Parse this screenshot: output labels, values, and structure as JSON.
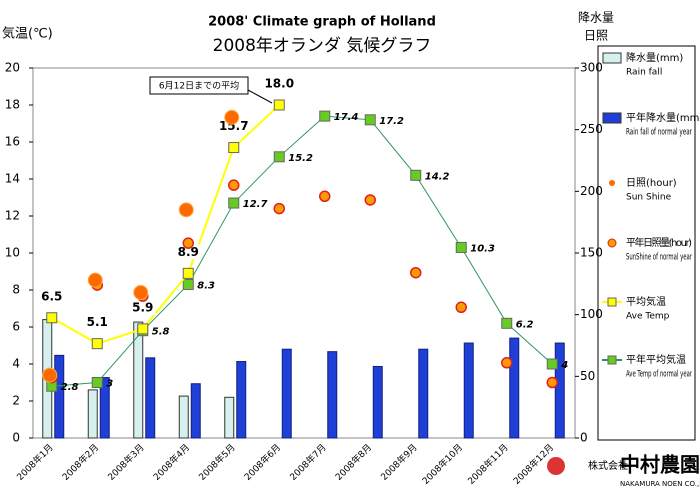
{
  "chart_data": {
    "type": "combo",
    "title": "2008' Climate graph of Holland",
    "subtitle": "2008年オランダ 気候グラフ",
    "y_label": "気温(℃)",
    "y2_label": [
      "降水量",
      "日照"
    ],
    "annotation": "6月12日までの平均",
    "logo": [
      "株式会社",
      "中村農園",
      "NAKAMURA NOEN CO.,LTD."
    ],
    "categories": [
      "2008年1月",
      "2008年2月",
      "2008年3月",
      "2008年4月",
      "2008年5月",
      "2008年6月",
      "2008年7月",
      "2008年8月",
      "2008年9月",
      "2008年10月",
      "2008年11月",
      "2008年12月"
    ],
    "ylim": [
      0,
      20
    ],
    "yticks": [
      0,
      2,
      4,
      6,
      8,
      10,
      12,
      14,
      16,
      18,
      20
    ],
    "y2lim": [
      0,
      300
    ],
    "y2ticks": [
      0,
      50,
      100,
      150,
      200,
      250,
      300
    ],
    "series": [
      {
        "name": "降水量(mm)",
        "subname": "Rain fall",
        "kind": "bar",
        "axis": "y2",
        "color": "#d6f0ee",
        "values": [
          96,
          39,
          94,
          34,
          33,
          null,
          null,
          null,
          null,
          null,
          null,
          null
        ]
      },
      {
        "name": "平年降水量(mm)",
        "subname": "Rain fall of normal year",
        "kind": "bar",
        "axis": "y2",
        "color": "#1f3fd6",
        "values": [
          67,
          49,
          65,
          44,
          62,
          72,
          70,
          58,
          72,
          77,
          81,
          77
        ]
      },
      {
        "name": "日照(hour)",
        "subname": "Sun Shine",
        "kind": "dot",
        "axis": "y2",
        "color": "#ff6a00",
        "values": [
          51,
          128,
          118,
          185,
          260,
          null,
          null,
          null,
          null,
          null,
          null,
          null
        ]
      },
      {
        "name": "平年日照量(hour)",
        "subname": "SunShine of normal year",
        "kind": "ring",
        "axis": "y2",
        "color": "#ff9a00",
        "values": [
          49,
          124,
          115,
          158,
          205,
          186,
          196,
          193,
          134,
          106,
          61,
          45
        ]
      },
      {
        "name": "平均気温",
        "subname": "Ave Temp",
        "kind": "line",
        "color": "#ffff00",
        "values": [
          6.5,
          5.1,
          5.9,
          8.9,
          15.7,
          18.0,
          null,
          null,
          null,
          null,
          null,
          null
        ],
        "value_labels": [
          "6.5",
          "5.1",
          "5.9",
          "8.9",
          "15.7",
          "18.0",
          null,
          null,
          null,
          null,
          null,
          null
        ]
      },
      {
        "name": "平年平均気温",
        "subname": "Ave Temp of normal year",
        "kind": "line",
        "color": "#2a9a5a",
        "values": [
          2.8,
          3,
          5.8,
          8.3,
          12.7,
          15.2,
          17.4,
          17.2,
          14.2,
          10.3,
          6.2,
          4
        ]
      }
    ]
  }
}
